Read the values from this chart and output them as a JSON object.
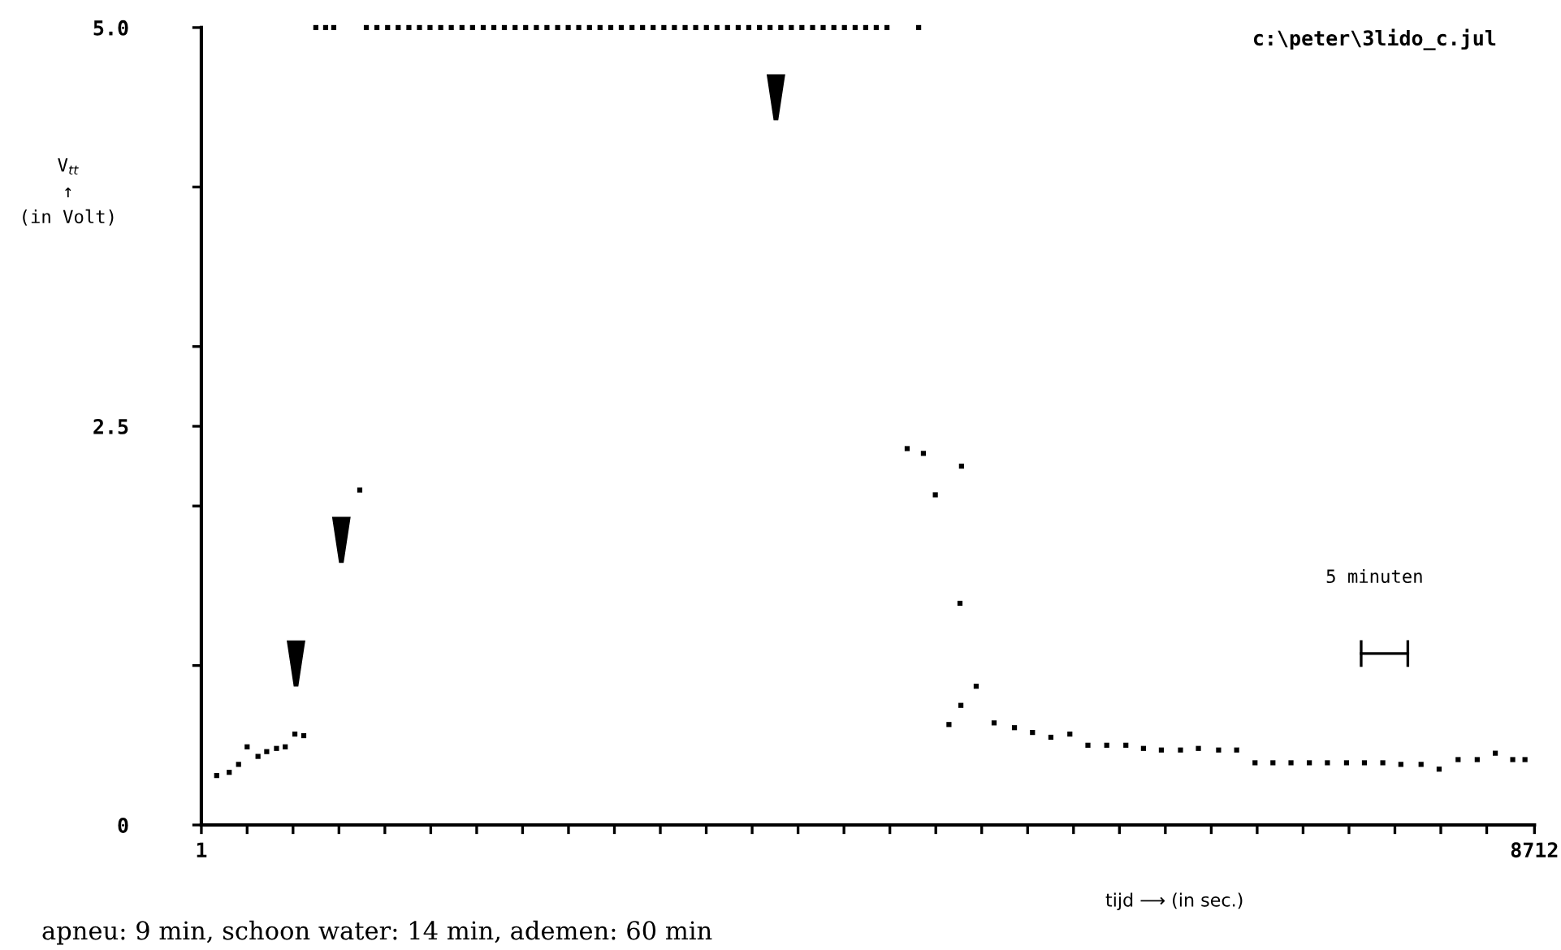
{
  "chart_data": {
    "type": "scatter",
    "xlabel": "tijd ⟶ (in sec.)",
    "ylabel": "V$_{tt}$\n↑\n(in Volt)",
    "annotations": [
      "c:\\peter\\3lido_c.jul",
      "5 minuten",
      "apneu: 9 min, schoon water: 14 min, ademen: 60 min"
    ],
    "xlim": [
      1,
      8712
    ],
    "xticks": [
      1,
      {
        "value": 300,
        "label": null
      },
      {
        "value": 600,
        "label": null
      },
      {
        "value": 900,
        "label": null
      },
      {
        "value": 1200,
        "label": null
      },
      {
        "value": 1500,
        "label": null
      },
      {
        "value": 1800,
        "label": null
      },
      {
        "value": 2100,
        "label": null
      },
      {
        "value": 2400,
        "label": null
      },
      {
        "value": 2700,
        "label": null
      },
      {
        "value": 3000,
        "label": null
      },
      {
        "value": 3300,
        "label": null
      },
      {
        "value": 3600,
        "label": null
      },
      {
        "value": 3900,
        "label": null
      },
      {
        "value": 4200,
        "label": null
      },
      {
        "value": 4500,
        "label": null
      },
      {
        "value": 4800,
        "label": null
      },
      {
        "value": 5100,
        "label": null
      },
      {
        "value": 5400,
        "label": null
      },
      {
        "value": 5700,
        "label": null
      },
      {
        "value": 6000,
        "label": null
      },
      {
        "value": 6300,
        "label": null
      },
      {
        "value": 6600,
        "label": null
      },
      {
        "value": 6900,
        "label": null
      },
      {
        "value": 7200,
        "label": null
      },
      {
        "value": 7500,
        "label": null
      },
      {
        "value": 7800,
        "label": null
      },
      {
        "value": 8100,
        "label": null
      },
      {
        "value": 8400,
        "label": null
      },
      8712
    ],
    "ylim": [
      0,
      5
    ],
    "yticks": [
      0,
      {
        "value": 1,
        "label": null
      },
      {
        "value": 2,
        "label": null
      },
      2.5,
      {
        "value": 3,
        "label": null
      },
      {
        "value": 4,
        "label": null
      },
      {
        "value": 5,
        "label": "5.0"
      }
    ],
    "grid": false,
    "legend": false,
    "marker": "square",
    "series": [
      {
        "color": "#000000",
        "x": [
          101,
          183,
          244,
          300,
          371,
          428,
          492,
          549,
          612,
          670,
          1036,
          749,
          813,
          866,
          1079,
          1148,
          1218,
          1287,
          1357,
          1426,
          1495,
          1565,
          1634,
          1704,
          1773,
          1843,
          1912,
          1981,
          2051,
          2120,
          2190,
          2259,
          2329,
          2398,
          2467,
          2537,
          2606,
          2676,
          2745,
          2815,
          2884,
          2953,
          3023,
          3092,
          3162,
          3231,
          3301,
          3370,
          3439,
          3509,
          3578,
          3648,
          3717,
          3787,
          3856,
          3925,
          3995,
          4064,
          4134,
          4203,
          4273,
          4342,
          4411,
          4481,
          4688,
          4613,
          4719,
          4797,
          4968,
          4958,
          4886,
          4964,
          5064,
          5181,
          5314,
          5432,
          5552,
          5676,
          5794,
          5917,
          6042,
          6157,
          6274,
          6399,
          6516,
          6648,
          6766,
          6886,
          7003,
          7121,
          7241,
          7359,
          7484,
          7601,
          7721,
          7839,
          7971,
          8089,
          8213,
          8338,
          8456,
          8570,
          8650
        ],
        "values": [
          0.31,
          0.33,
          0.38,
          0.49,
          0.43,
          0.46,
          0.48,
          0.49,
          0.57,
          0.56,
          2.1,
          5,
          5,
          5,
          5,
          5,
          5,
          5,
          5,
          5,
          5,
          5,
          5,
          5,
          5,
          5,
          5,
          5,
          5,
          5,
          5,
          5,
          5,
          5,
          5,
          5,
          5,
          5,
          5,
          5,
          5,
          5,
          5,
          5,
          5,
          5,
          5,
          5,
          5,
          5,
          5,
          5,
          5,
          5,
          5,
          5,
          5,
          5,
          5,
          5,
          5,
          5,
          5,
          5,
          5,
          2.36,
          2.33,
          2.07,
          2.25,
          1.39,
          0.63,
          0.75,
          0.87,
          0.64,
          0.61,
          0.58,
          0.55,
          0.57,
          0.5,
          0.5,
          0.5,
          0.48,
          0.47,
          0.47,
          0.48,
          0.47,
          0.47,
          0.39,
          0.39,
          0.39,
          0.39,
          0.39,
          0.39,
          0.39,
          0.39,
          0.38,
          0.38,
          0.35,
          0.41,
          0.41,
          0.45,
          0.41,
          0.41
        ]
      }
    ]
  }
}
